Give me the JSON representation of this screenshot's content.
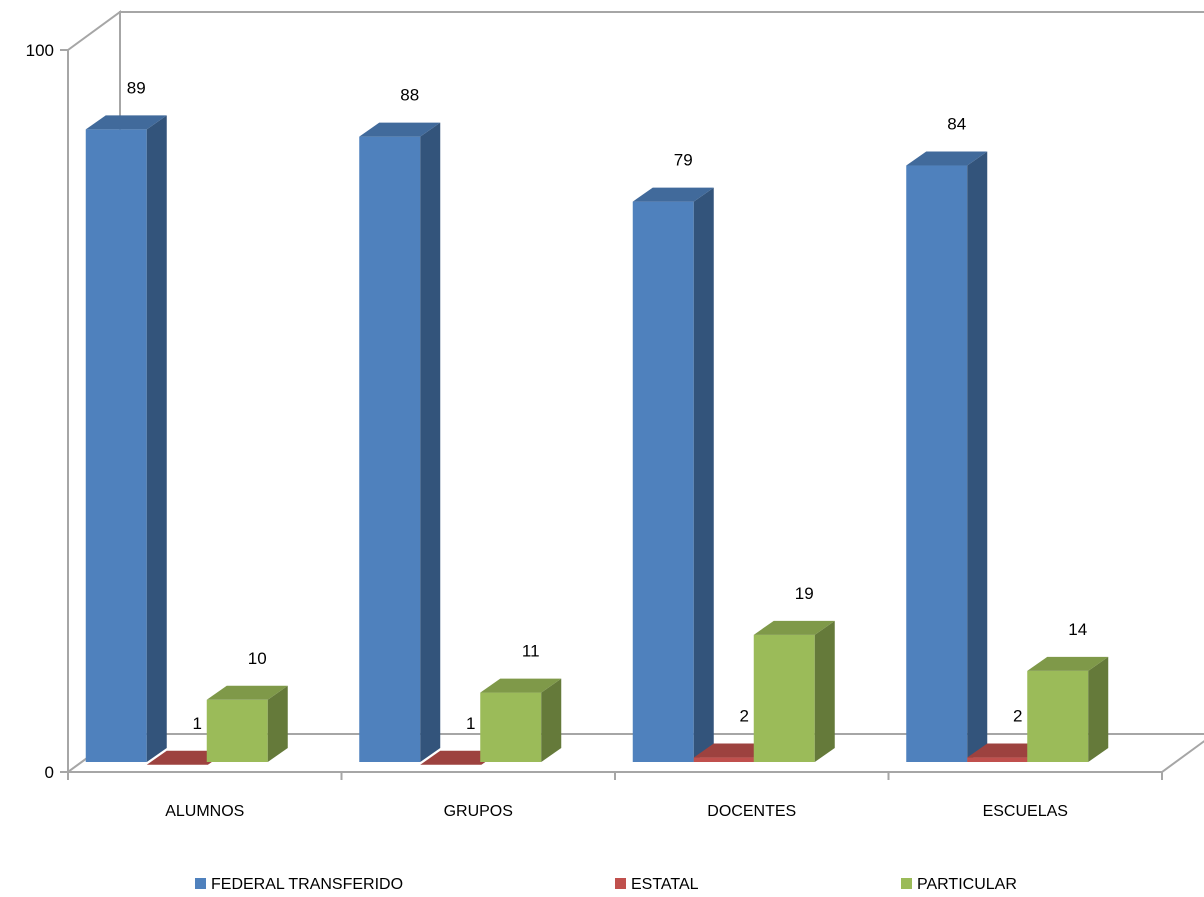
{
  "chart_data": {
    "type": "bar",
    "title": "",
    "xlabel": "",
    "ylabel": "",
    "ylim": [
      0,
      100
    ],
    "yticks": [
      0,
      100
    ],
    "categories": [
      "ALUMNOS",
      "GRUPOS",
      "DOCENTES",
      "ESCUELAS"
    ],
    "series": [
      {
        "name": "FEDERAL TRANSFERIDO",
        "values": [
          89,
          88,
          79,
          84
        ],
        "color": "#4F81BD"
      },
      {
        "name": "ESTATAL",
        "values": [
          1,
          1,
          2,
          2
        ],
        "color": "#C0504D"
      },
      {
        "name": "PARTICULAR",
        "values": [
          10,
          11,
          19,
          14
        ],
        "color": "#9BBB59"
      }
    ],
    "data_labels": true,
    "three_d": true,
    "grid": false,
    "legend": "bottom"
  }
}
